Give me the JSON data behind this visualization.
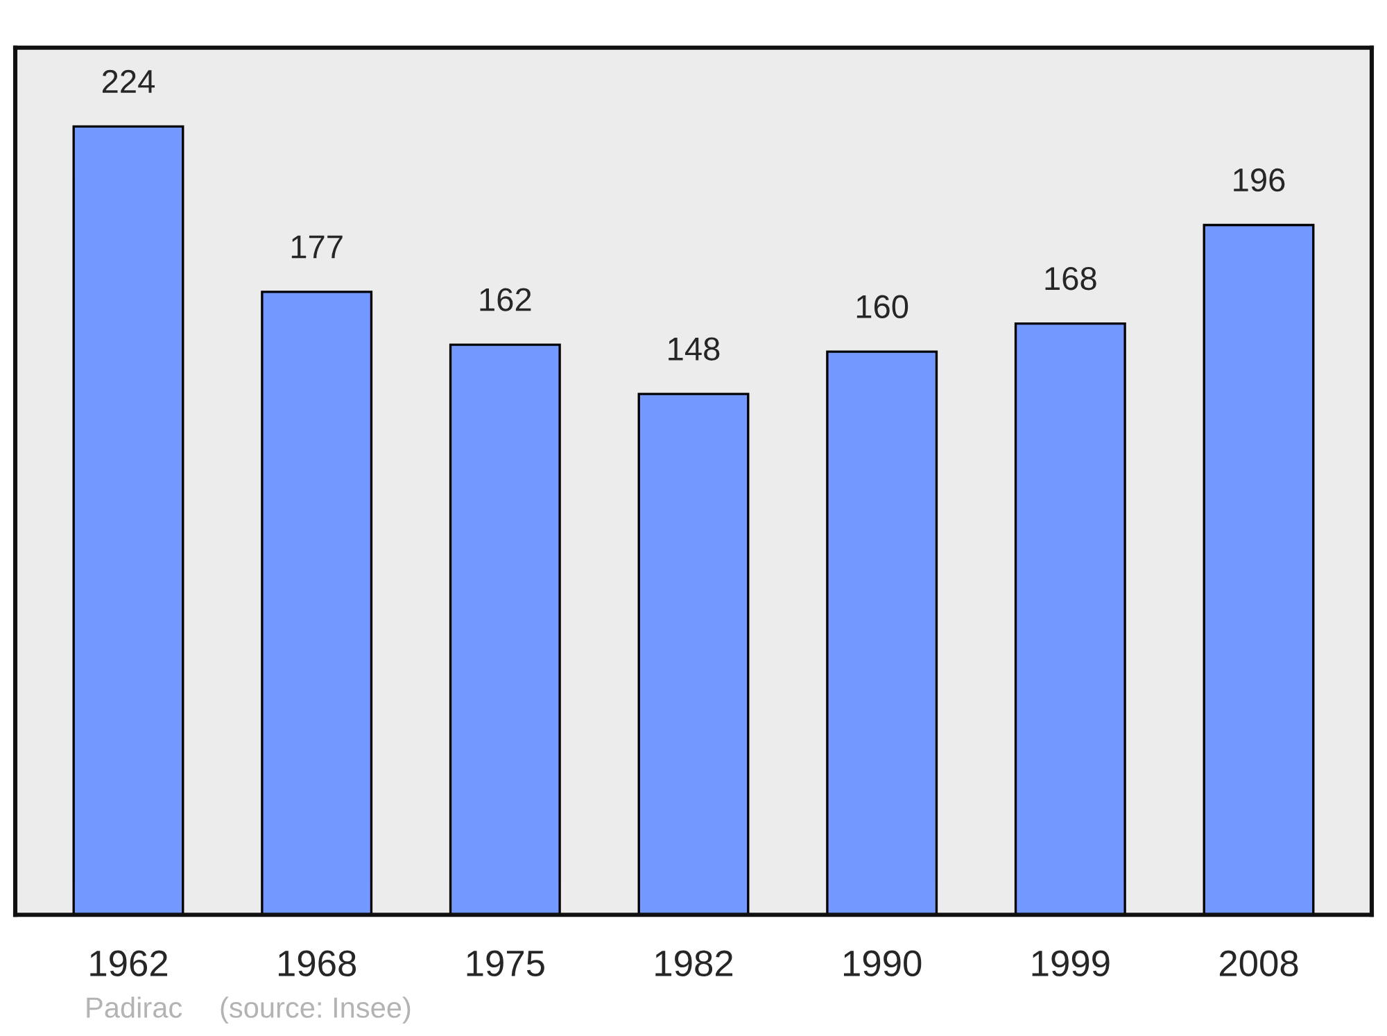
{
  "chart_data": {
    "type": "bar",
    "categories": [
      "1962",
      "1968",
      "1975",
      "1982",
      "1990",
      "1999",
      "2008"
    ],
    "values": [
      224,
      177,
      162,
      148,
      160,
      168,
      196
    ],
    "color": "#7399ff",
    "data_labels": true,
    "tick_labels": "x",
    "annotations": [
      "Padirac",
      "(source: Insee)"
    ]
  }
}
